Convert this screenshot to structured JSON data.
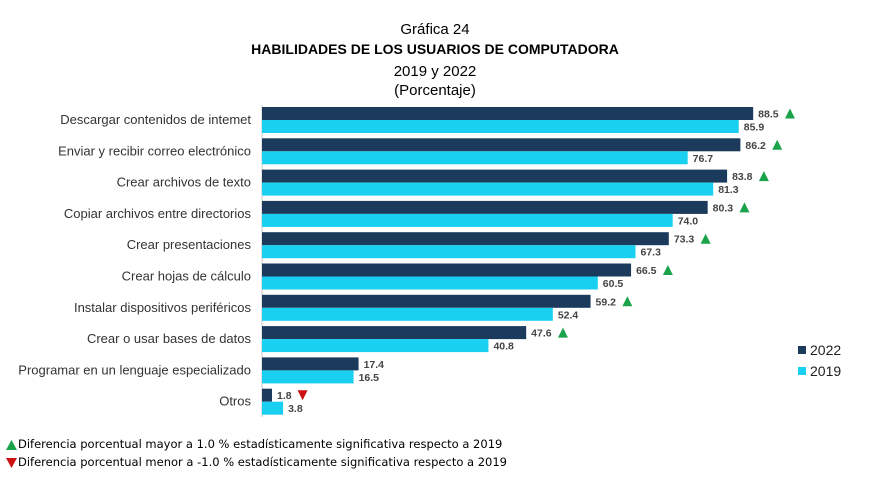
{
  "header": {
    "figure_number": "Gráfica 24",
    "title": "HABILIDADES DE LOS USUARIOS DE COMPUTADORA",
    "years": "2019 y 2022",
    "unit": "(Porcentaje)"
  },
  "chart_data": {
    "type": "bar",
    "orientation": "horizontal",
    "title": "HABILIDADES DE LOS USUARIOS DE COMPUTADORA",
    "categories": [
      "Descargar contenidos de intemet",
      "Enviar y recibir correo electrónico",
      "Crear archivos de texto",
      "Copiar archivos entre directorios",
      "Crear presentaciones",
      "Crear hojas de cálculo",
      "Instalar dispositivos periféricos",
      "Crear o usar bases de datos",
      "Programar en un lenguaje especializado",
      "Otros"
    ],
    "series": [
      {
        "name": "2022",
        "color": "#1b3a5c",
        "values": [
          88.5,
          86.2,
          83.8,
          80.3,
          73.3,
          66.5,
          59.2,
          47.6,
          17.4,
          1.8
        ],
        "labels": [
          "88.5",
          "86.2",
          "83.8",
          "80.3",
          "73.3",
          "66.5",
          "59.2",
          "47.6",
          "17.4",
          "1.8"
        ],
        "markers": [
          "up",
          "up",
          "up",
          "up",
          "up",
          "up",
          "up",
          "up",
          "",
          "down"
        ]
      },
      {
        "name": "2019",
        "color": "#1ad0f0",
        "values": [
          85.9,
          76.7,
          81.3,
          74.0,
          67.3,
          60.5,
          52.4,
          40.8,
          16.5,
          3.8
        ],
        "labels": [
          "85.9",
          "76.7",
          "81.3",
          "74.0",
          "67.3",
          "60.5",
          "52.4",
          "40.8",
          "16.5",
          "3.8"
        ]
      }
    ],
    "xlim": [
      0,
      100
    ],
    "grid": false,
    "legend_position": "right",
    "marker_colors": {
      "up": "#1aa34a",
      "down": "#cc1111"
    }
  },
  "footnotes": {
    "up": "Diferencia porcentual mayor a 1.0 % estadísticamente significativa respecto a 2019",
    "down": "Diferencia porcentual menor a -1.0 % estadísticamente significativa respecto a 2019"
  }
}
